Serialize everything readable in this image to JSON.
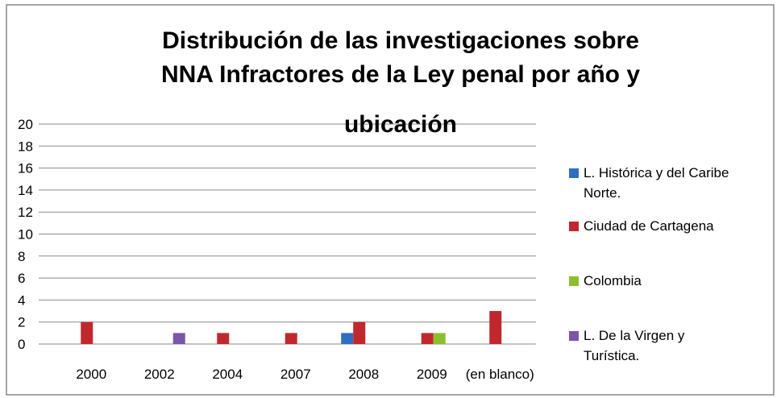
{
  "chart_data": {
    "type": "bar",
    "title": [
      "Distribución de las investigaciones sobre",
      "NNA Infractores de la Ley penal por año y",
      "ubicación"
    ],
    "categories": [
      "2000",
      "2002",
      "2004",
      "2007",
      "2008",
      "2009",
      "(en blanco)"
    ],
    "series": [
      {
        "name": "L. Histórica y del Caribe Norte.",
        "color": "#2f6fbf",
        "values": [
          0,
          0,
          0,
          0,
          1,
          0,
          0
        ]
      },
      {
        "name": "Ciudad de Cartagena",
        "color": "#c0282d",
        "values": [
          2,
          0,
          1,
          1,
          2,
          1,
          3
        ]
      },
      {
        "name": "Colombia",
        "color": "#8cbf2e",
        "values": [
          0,
          0,
          0,
          0,
          0,
          1,
          0
        ]
      },
      {
        "name": "L. De la Virgen y Turística.",
        "color": "#7b55a8",
        "values": [
          0,
          1,
          0,
          0,
          0,
          0,
          0
        ]
      }
    ],
    "ylim": [
      0,
      20
    ],
    "yticks": [
      0,
      2,
      4,
      6,
      8,
      10,
      12,
      14,
      16,
      18,
      20
    ],
    "grid": true,
    "legend": "right"
  }
}
